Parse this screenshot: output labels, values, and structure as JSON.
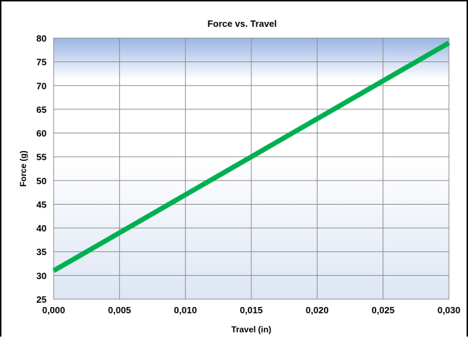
{
  "chart_data": {
    "type": "line",
    "title": "Force vs. Travel",
    "xlabel": "Travel (in)",
    "ylabel": "Force (g)",
    "xlim": [
      0,
      0.03
    ],
    "ylim": [
      25,
      80
    ],
    "x_ticks": [
      "0,000",
      "0,005",
      "0,010",
      "0,015",
      "0,020",
      "0,025",
      "0,030"
    ],
    "y_ticks": [
      "25",
      "30",
      "35",
      "40",
      "45",
      "50",
      "55",
      "60",
      "65",
      "70",
      "75",
      "80"
    ],
    "grid": true,
    "legend": "none",
    "series": [
      {
        "x": [
          0,
          0.03
        ],
        "y": [
          31,
          79
        ],
        "color": "#00b050"
      }
    ],
    "colors": {
      "plot_gradient_top": "#9bb5e4",
      "plot_gradient_mid": "#ffffff",
      "plot_gradient_bottom": "#dde6f4",
      "grid": "#8c8c8c",
      "line": "#00b050"
    }
  }
}
